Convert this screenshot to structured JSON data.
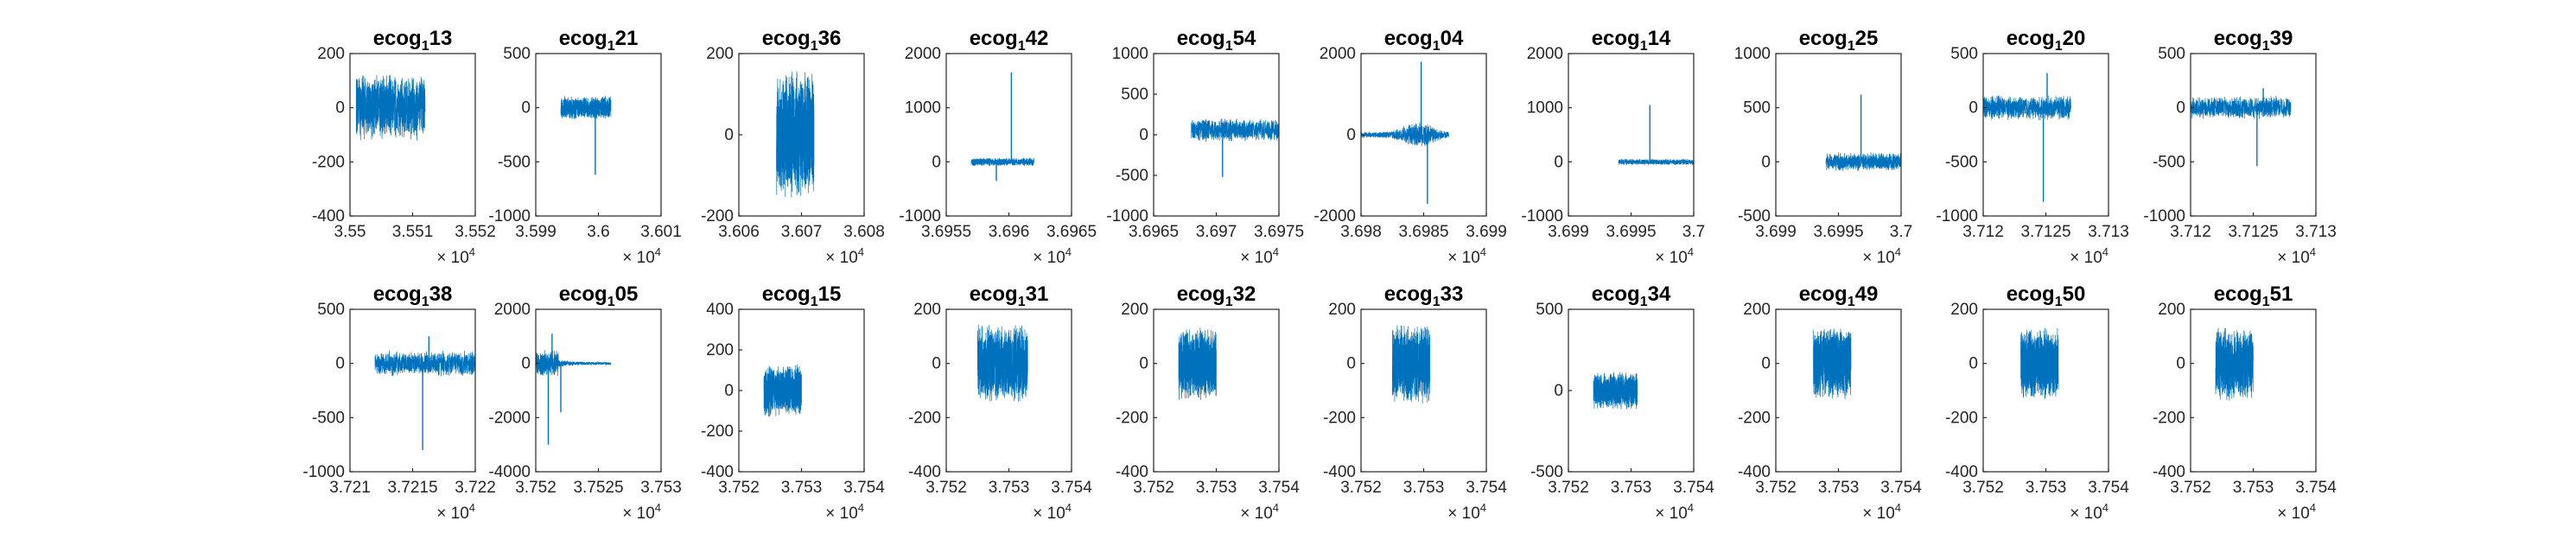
{
  "figure": {
    "background": "#ffffff",
    "line_color": "#0072BD",
    "axis_color": "#262626"
  },
  "chart_data": [
    {
      "type": "line",
      "title": {
        "base": "ecog",
        "sub": "1",
        "rest": "13"
      },
      "xlim": [
        35500,
        35520
      ],
      "ylim": [
        -400,
        200
      ],
      "xticks": [
        "3.55",
        "3.551",
        "3.552"
      ],
      "yticks": [
        "-400",
        "-200",
        "0",
        "200"
      ],
      "x_multiplier": {
        "base": "× 10",
        "exp": "4"
      },
      "series": [
        {
          "x_range": [
            35501,
            35512
          ],
          "center": 0,
          "amplitude": 130,
          "style": "noise",
          "seed": 1
        }
      ]
    },
    {
      "type": "line",
      "title": {
        "base": "ecog",
        "sub": "1",
        "rest": "21"
      },
      "xlim": [
        35990,
        36010
      ],
      "ylim": [
        -1000,
        500
      ],
      "xticks": [
        "3.599",
        "3.6",
        "3.601"
      ],
      "yticks": [
        "-1000",
        "-500",
        "0",
        "500"
      ],
      "x_multiplier": {
        "base": "× 10",
        "exp": "4"
      },
      "series": [
        {
          "x_range": [
            35994,
            36002
          ],
          "center": 0,
          "amplitude": 110,
          "style": "noise",
          "seed": 2,
          "spikes": [
            {
              "x": 35999.5,
              "y": -620
            }
          ]
        }
      ]
    },
    {
      "type": "line",
      "title": {
        "base": "ecog",
        "sub": "1",
        "rest": "36"
      },
      "xlim": [
        36060,
        36080
      ],
      "ylim": [
        -200,
        200
      ],
      "xticks": [
        "3.606",
        "3.607",
        "3.608"
      ],
      "yticks": [
        "-200",
        "0",
        "200"
      ],
      "x_multiplier": {
        "base": "× 10",
        "exp": "4"
      },
      "series": [
        {
          "x_range": [
            36066,
            36072
          ],
          "center": 0,
          "amplitude": 160,
          "style": "noise",
          "seed": 3
        }
      ]
    },
    {
      "type": "line",
      "title": {
        "base": "ecog",
        "sub": "1",
        "rest": "42"
      },
      "xlim": [
        36955,
        36965
      ],
      "ylim": [
        -1000,
        2000
      ],
      "xticks": [
        "3.6955",
        "3.696",
        "3.6965"
      ],
      "yticks": [
        "-1000",
        "0",
        "1000",
        "2000"
      ],
      "x_multiplier": {
        "base": "× 10",
        "exp": "4"
      },
      "series": [
        {
          "x_range": [
            36957,
            36962
          ],
          "center": 0,
          "amplitude": 80,
          "style": "noise",
          "seed": 4,
          "spikes": [
            {
              "x": 36960.2,
              "y": 1650
            },
            {
              "x": 36959,
              "y": -350
            }
          ]
        }
      ]
    },
    {
      "type": "line",
      "title": {
        "base": "ecog",
        "sub": "1",
        "rest": "54"
      },
      "xlim": [
        36965,
        36975
      ],
      "ylim": [
        -1000,
        1000
      ],
      "xticks": [
        "3.6965",
        "3.697",
        "3.6975"
      ],
      "yticks": [
        "-1000",
        "-500",
        "0",
        "500",
        "1000"
      ],
      "x_multiplier": {
        "base": "× 10",
        "exp": "4"
      },
      "series": [
        {
          "x_range": [
            36968,
            36975
          ],
          "center": 60,
          "amplitude": 150,
          "style": "noise",
          "seed": 5,
          "spikes": [
            {
              "x": 36970.5,
              "y": -520
            }
          ]
        }
      ]
    },
    {
      "type": "line",
      "title": {
        "base": "ecog",
        "sub": "1",
        "rest": "04"
      },
      "xlim": [
        36980,
        36990
      ],
      "ylim": [
        -2000,
        2000
      ],
      "xticks": [
        "3.698",
        "3.6985",
        "3.699"
      ],
      "yticks": [
        "-2000",
        "0",
        "2000"
      ],
      "x_multiplier": {
        "base": "× 10",
        "exp": "4"
      },
      "series": [
        {
          "x_range": [
            36980,
            36987
          ],
          "center": 0,
          "amplitude": 200,
          "style": "burst",
          "seed": 6,
          "spikes": [
            {
              "x": 36984.8,
              "y": 1800
            },
            {
              "x": 36985.3,
              "y": -1700
            }
          ]
        }
      ]
    },
    {
      "type": "line",
      "title": {
        "base": "ecog",
        "sub": "1",
        "rest": "14"
      },
      "xlim": [
        36990,
        37000
      ],
      "ylim": [
        -1000,
        2000
      ],
      "xticks": [
        "3.699",
        "3.6995",
        "3.7"
      ],
      "yticks": [
        "-1000",
        "0",
        "1000",
        "2000"
      ],
      "x_multiplier": {
        "base": "× 10",
        "exp": "4"
      },
      "series": [
        {
          "x_range": [
            36994,
            37000
          ],
          "center": 0,
          "amplitude": 60,
          "style": "noise",
          "seed": 7,
          "spikes": [
            {
              "x": 36996.5,
              "y": 1050
            }
          ]
        }
      ]
    },
    {
      "type": "line",
      "title": {
        "base": "ecog",
        "sub": "1",
        "rest": "25"
      },
      "xlim": [
        36990,
        37000
      ],
      "ylim": [
        -500,
        1000
      ],
      "xticks": [
        "3.699",
        "3.6995",
        "3.7"
      ],
      "yticks": [
        "-500",
        "0",
        "500",
        "1000"
      ],
      "x_multiplier": {
        "base": "× 10",
        "exp": "4"
      },
      "series": [
        {
          "x_range": [
            36994,
            37000
          ],
          "center": 0,
          "amplitude": 90,
          "style": "noise",
          "seed": 8,
          "spikes": [
            {
              "x": 36996.8,
              "y": 620
            }
          ]
        }
      ]
    },
    {
      "type": "line",
      "title": {
        "base": "ecog",
        "sub": "1",
        "rest": "20"
      },
      "xlim": [
        37120,
        37130
      ],
      "ylim": [
        -1000,
        500
      ],
      "xticks": [
        "3.712",
        "3.7125",
        "3.713"
      ],
      "yticks": [
        "-1000",
        "-500",
        "0",
        "500"
      ],
      "x_multiplier": {
        "base": "× 10",
        "exp": "4"
      },
      "series": [
        {
          "x_range": [
            37120,
            37127
          ],
          "center": 0,
          "amplitude": 120,
          "style": "noise",
          "seed": 9,
          "spikes": [
            {
              "x": 37124.8,
              "y": -870
            },
            {
              "x": 37125.1,
              "y": 320
            }
          ]
        }
      ]
    },
    {
      "type": "line",
      "title": {
        "base": "ecog",
        "sub": "1",
        "rest": "39"
      },
      "xlim": [
        37120,
        37130
      ],
      "ylim": [
        -1000,
        500
      ],
      "xticks": [
        "3.712",
        "3.7125",
        "3.713"
      ],
      "yticks": [
        "-1000",
        "-500",
        "0",
        "500"
      ],
      "x_multiplier": {
        "base": "× 10",
        "exp": "4"
      },
      "series": [
        {
          "x_range": [
            37120,
            37128
          ],
          "center": 0,
          "amplitude": 110,
          "style": "noise",
          "seed": 10,
          "spikes": [
            {
              "x": 37125.3,
              "y": -540
            },
            {
              "x": 37125.8,
              "y": 180
            }
          ]
        }
      ]
    },
    {
      "type": "line",
      "title": {
        "base": "ecog",
        "sub": "1",
        "rest": "38"
      },
      "xlim": [
        37210,
        37220
      ],
      "ylim": [
        -1000,
        500
      ],
      "xticks": [
        "3.721",
        "3.7215",
        "3.722"
      ],
      "yticks": [
        "-1000",
        "-500",
        "0",
        "500"
      ],
      "x_multiplier": {
        "base": "× 10",
        "exp": "4"
      },
      "series": [
        {
          "x_range": [
            37212,
            37220
          ],
          "center": 0,
          "amplitude": 120,
          "style": "noise",
          "seed": 11,
          "spikes": [
            {
              "x": 37215.8,
              "y": -800
            },
            {
              "x": 37216.3,
              "y": 250
            }
          ]
        }
      ]
    },
    {
      "type": "line",
      "title": {
        "base": "ecog",
        "sub": "1",
        "rest": "05"
      },
      "xlim": [
        37520,
        37530
      ],
      "ylim": [
        -4000,
        2000
      ],
      "xticks": [
        "3.752",
        "3.7525",
        "3.753"
      ],
      "yticks": [
        "-4000",
        "-2000",
        "0",
        "2000"
      ],
      "x_multiplier": {
        "base": "× 10",
        "exp": "4"
      },
      "series": [
        {
          "x_range": [
            37520,
            37526
          ],
          "center": 0,
          "amplitude": 150,
          "style": "decay",
          "seed": 12,
          "spikes": [
            {
              "x": 37521,
              "y": -3000
            },
            {
              "x": 37521.3,
              "y": 1100
            },
            {
              "x": 37522,
              "y": -1800
            }
          ]
        }
      ]
    },
    {
      "type": "line",
      "title": {
        "base": "ecog",
        "sub": "1",
        "rest": "15"
      },
      "xlim": [
        37520,
        37540
      ],
      "ylim": [
        -400,
        400
      ],
      "xticks": [
        "3.752",
        "3.753",
        "3.754"
      ],
      "yticks": [
        "-400",
        "-200",
        "0",
        "200",
        "400"
      ],
      "x_multiplier": {
        "base": "× 10",
        "exp": "4"
      },
      "series": [
        {
          "x_range": [
            37524,
            37530
          ],
          "center": 0,
          "amplitude": 130,
          "style": "noise",
          "seed": 13
        }
      ]
    },
    {
      "type": "line",
      "title": {
        "base": "ecog",
        "sub": "1",
        "rest": "31"
      },
      "xlim": [
        37520,
        37540
      ],
      "ylim": [
        -400,
        200
      ],
      "xticks": [
        "3.752",
        "3.753",
        "3.754"
      ],
      "yticks": [
        "-400",
        "-200",
        "0",
        "200"
      ],
      "x_multiplier": {
        "base": "× 10",
        "exp": "4"
      },
      "series": [
        {
          "x_range": [
            37525,
            37533
          ],
          "center": 0,
          "amplitude": 150,
          "style": "noise",
          "seed": 14
        }
      ]
    },
    {
      "type": "line",
      "title": {
        "base": "ecog",
        "sub": "1",
        "rest": "32"
      },
      "xlim": [
        37520,
        37540
      ],
      "ylim": [
        -400,
        200
      ],
      "xticks": [
        "3.752",
        "3.753",
        "3.754"
      ],
      "yticks": [
        "-400",
        "-200",
        "0",
        "200"
      ],
      "x_multiplier": {
        "base": "× 10",
        "exp": "4"
      },
      "series": [
        {
          "x_range": [
            37524,
            37530
          ],
          "center": 0,
          "amplitude": 140,
          "style": "noise",
          "seed": 15
        }
      ]
    },
    {
      "type": "line",
      "title": {
        "base": "ecog",
        "sub": "1",
        "rest": "33"
      },
      "xlim": [
        37520,
        37540
      ],
      "ylim": [
        -400,
        200
      ],
      "xticks": [
        "3.752",
        "3.753",
        "3.754"
      ],
      "yticks": [
        "-400",
        "-200",
        "0",
        "200"
      ],
      "x_multiplier": {
        "base": "× 10",
        "exp": "4"
      },
      "series": [
        {
          "x_range": [
            37525,
            37531
          ],
          "center": 0,
          "amplitude": 150,
          "style": "noise",
          "seed": 16
        }
      ]
    },
    {
      "type": "line",
      "title": {
        "base": "ecog",
        "sub": "1",
        "rest": "34"
      },
      "xlim": [
        37520,
        37540
      ],
      "ylim": [
        -500,
        500
      ],
      "xticks": [
        "3.752",
        "3.753",
        "3.754"
      ],
      "yticks": [
        "-500",
        "0",
        "500"
      ],
      "x_multiplier": {
        "base": "× 10",
        "exp": "4"
      },
      "series": [
        {
          "x_range": [
            37524,
            37531
          ],
          "center": 0,
          "amplitude": 120,
          "style": "noise",
          "seed": 17
        }
      ]
    },
    {
      "type": "line",
      "title": {
        "base": "ecog",
        "sub": "1",
        "rest": "49"
      },
      "xlim": [
        37520,
        37540
      ],
      "ylim": [
        -400,
        200
      ],
      "xticks": [
        "3.752",
        "3.753",
        "3.754"
      ],
      "yticks": [
        "-400",
        "-200",
        "0",
        "200"
      ],
      "x_multiplier": {
        "base": "× 10",
        "exp": "4"
      },
      "series": [
        {
          "x_range": [
            37526,
            37532
          ],
          "center": 0,
          "amplitude": 140,
          "style": "noise",
          "seed": 18
        }
      ]
    },
    {
      "type": "line",
      "title": {
        "base": "ecog",
        "sub": "1",
        "rest": "50"
      },
      "xlim": [
        37520,
        37540
      ],
      "ylim": [
        -400,
        200
      ],
      "xticks": [
        "3.752",
        "3.753",
        "3.754"
      ],
      "yticks": [
        "-400",
        "-200",
        "0",
        "200"
      ],
      "x_multiplier": {
        "base": "× 10",
        "exp": "4"
      },
      "series": [
        {
          "x_range": [
            37526,
            37532
          ],
          "center": 0,
          "amplitude": 140,
          "style": "noise",
          "seed": 19
        }
      ]
    },
    {
      "type": "line",
      "title": {
        "base": "ecog",
        "sub": "1",
        "rest": "51"
      },
      "xlim": [
        37520,
        37540
      ],
      "ylim": [
        -400,
        200
      ],
      "xticks": [
        "3.752",
        "3.753",
        "3.754"
      ],
      "yticks": [
        "-400",
        "-200",
        "0",
        "200"
      ],
      "x_multiplier": {
        "base": "× 10",
        "exp": "4"
      },
      "series": [
        {
          "x_range": [
            37524,
            37530
          ],
          "center": 0,
          "amplitude": 140,
          "style": "noise",
          "seed": 20
        }
      ]
    }
  ]
}
